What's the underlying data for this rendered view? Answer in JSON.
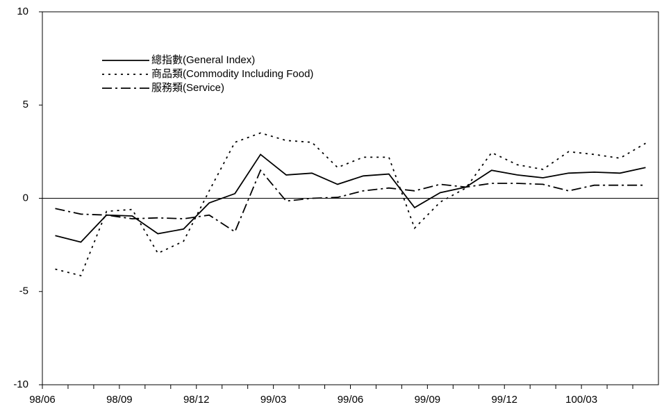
{
  "chart_data": {
    "type": "line",
    "categories": [
      "98/06",
      null,
      null,
      "98/09",
      null,
      null,
      "98/12",
      null,
      null,
      "99/03",
      null,
      null,
      "99/06",
      null,
      null,
      "99/09",
      null,
      null,
      "99/12",
      null,
      null,
      "100/03",
      null,
      null
    ],
    "series": [
      {
        "name": "總指數(General Index)",
        "color": "#000000",
        "dash": "solid",
        "values": [
          -2.0,
          -2.35,
          -0.9,
          -0.95,
          -1.9,
          -1.65,
          -0.25,
          0.25,
          2.35,
          1.25,
          1.35,
          0.75,
          1.2,
          1.3,
          -0.5,
          0.3,
          0.6,
          1.5,
          1.25,
          1.1,
          1.35,
          1.4,
          1.35,
          1.65
        ]
      },
      {
        "name": "商品類(Commodity Including Food)",
        "color": "#000000",
        "dash": "dotted",
        "values": [
          -3.8,
          -4.15,
          -0.7,
          -0.6,
          -2.95,
          -2.3,
          0.4,
          3.0,
          3.5,
          3.1,
          3.0,
          1.65,
          2.2,
          2.2,
          -1.6,
          -0.2,
          0.55,
          2.45,
          1.8,
          1.55,
          2.5,
          2.35,
          2.15,
          2.95
        ]
      },
      {
        "name": "服務類(Service)",
        "color": "#000000",
        "dash": "dashdot",
        "values": [
          -0.55,
          -0.85,
          -0.9,
          -1.1,
          -1.05,
          -1.1,
          -0.9,
          -1.8,
          1.5,
          -0.15,
          0.0,
          0.05,
          0.4,
          0.55,
          0.4,
          0.75,
          0.6,
          0.8,
          0.8,
          0.75,
          0.4,
          0.7,
          0.7,
          0.7
        ]
      }
    ],
    "ylim": [
      -10,
      10
    ],
    "yticks": [
      10,
      5,
      0,
      -5,
      -10
    ],
    "grid": false
  }
}
